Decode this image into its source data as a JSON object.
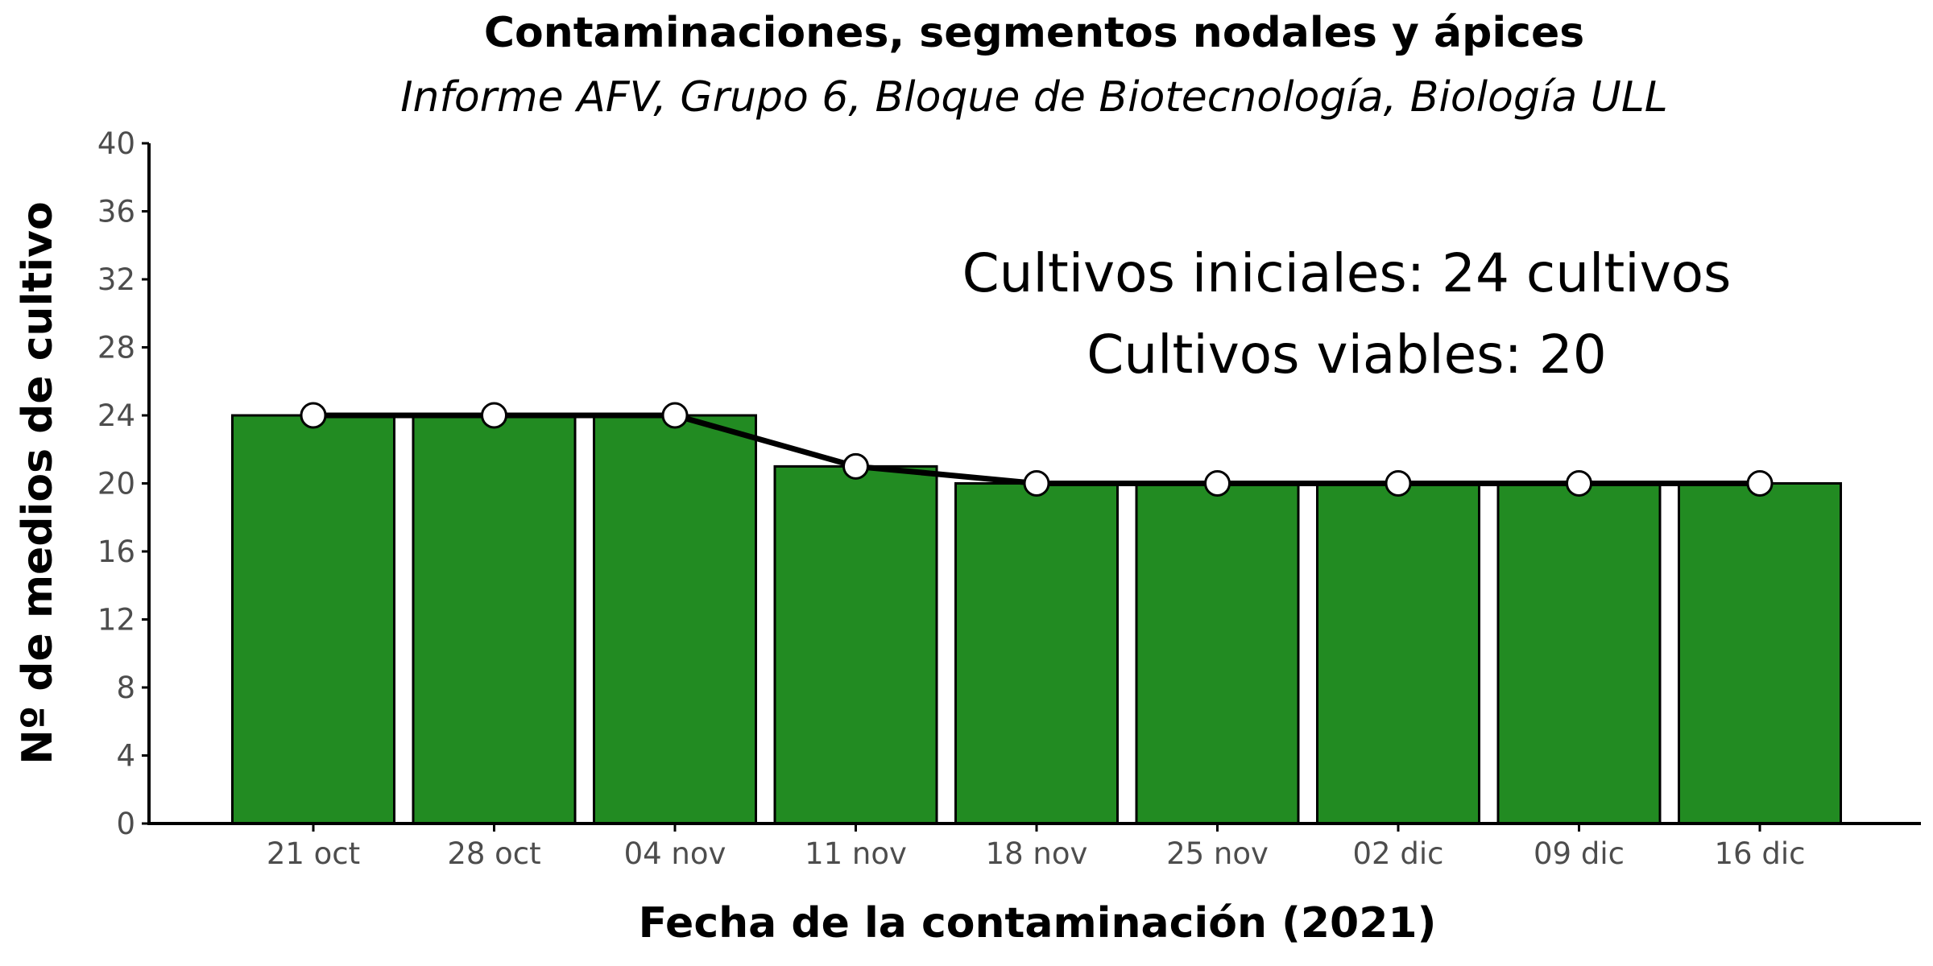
{
  "chart_data": {
    "type": "bar",
    "title": "Contaminaciones, segmentos nodales y ápices",
    "subtitle": "Informe AFV, Grupo 6, Bloque de Biotecnología, Biología ULL",
    "xlabel": "Fecha de la contaminación (2021)",
    "ylabel": "Nº de medios de cultivo",
    "categories": [
      "21 oct",
      "28 oct",
      "04 nov",
      "11 nov",
      "18 nov",
      "25 nov",
      "02 dic",
      "09 dic",
      "16 dic"
    ],
    "values": [
      24,
      24,
      24,
      21,
      20,
      20,
      20,
      20,
      20
    ],
    "line_values": [
      24,
      24,
      24,
      21,
      20,
      20,
      20,
      20,
      20
    ],
    "ylim": [
      0,
      40
    ],
    "yticks": [
      0,
      4,
      8,
      12,
      16,
      20,
      24,
      28,
      32,
      36,
      40
    ],
    "grid": false,
    "legend": "none",
    "annotations": [
      "Cultivos iniciales: 24 cultivos",
      "Cultivos viables: 20"
    ],
    "colors": {
      "bar_fill": "#228B22",
      "bar_stroke": "#000000",
      "line": "#000000",
      "point_fill": "#ffffff",
      "point_stroke": "#000000"
    }
  }
}
